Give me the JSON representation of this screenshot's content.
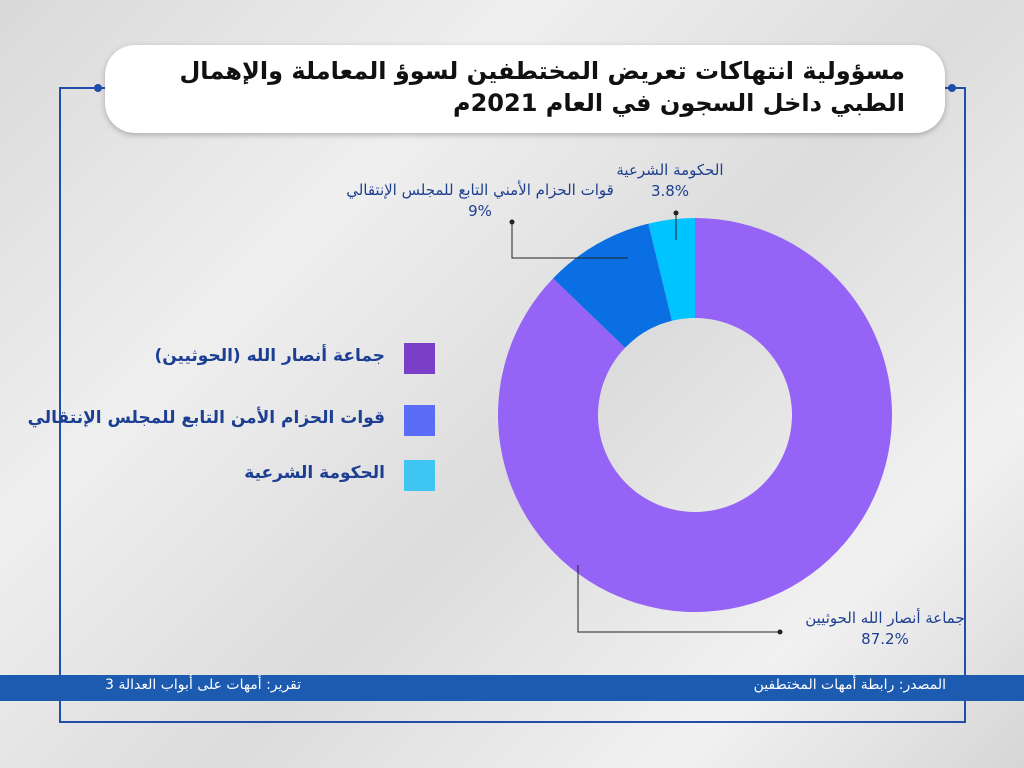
{
  "chart_data": {
    "type": "pie",
    "donut": true,
    "title": "مسؤولية انتهاكات تعريض المختطفين لسوؤ المعاملة والإهمال الطبي داخل السجون في العام 2021م",
    "categories": [
      "جماعة أنصار الله الحوثيين",
      "قوات الحزام الأمني التابع للمجلس الإنتقالي",
      "الحكومة الشرعية"
    ],
    "values": [
      87.2,
      9,
      3.8
    ],
    "value_labels": [
      "87.2%",
      "9%",
      "3.8%"
    ],
    "colors": [
      "#9563f5",
      "#0a6fe3",
      "#00c4ff"
    ],
    "legend": [
      {
        "label": "جماعة أنصار الله (الحوثيين)",
        "color": "#7a3fc6"
      },
      {
        "label": "قوات الحزام الأمن التابع للمجلس الإنتقالي",
        "color": "#5b6cf6"
      },
      {
        "label": "الحكومة الشرعية",
        "color": "#3ec5f2"
      }
    ]
  },
  "footer": {
    "source": "المصدر: رابطة أمهات المختطفين",
    "report": "تقرير:  أمهات على أبواب العدالة 3"
  }
}
